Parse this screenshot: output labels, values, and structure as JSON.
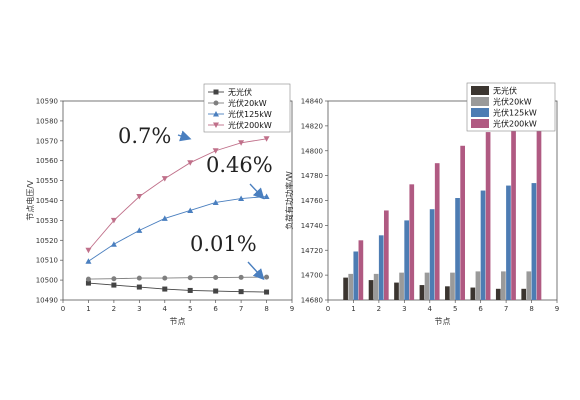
{
  "chart_data": [
    {
      "type": "line",
      "xlabel": "节点",
      "ylabel": "节点电压/V",
      "xlim": [
        0,
        9
      ],
      "ylim": [
        10490,
        10590
      ],
      "xticks": [
        0,
        1,
        2,
        3,
        4,
        5,
        6,
        7,
        8,
        9
      ],
      "yticks": [
        10490,
        10500,
        10510,
        10520,
        10530,
        10540,
        10550,
        10560,
        10570,
        10580,
        10590
      ],
      "grid": false,
      "legend": "top-right",
      "x": [
        1,
        2,
        3,
        4,
        5,
        6,
        7,
        8
      ],
      "series": [
        {
          "name": "无光伏",
          "color": "#444444",
          "marker": "square",
          "values": [
            10498.5,
            10497.5,
            10496.5,
            10495.5,
            10494.8,
            10494.5,
            10494.2,
            10494
          ]
        },
        {
          "name": "光伏20kW",
          "color": "#7f7f7f",
          "marker": "circle",
          "values": [
            10500.5,
            10500.7,
            10501,
            10501,
            10501.2,
            10501.3,
            10501.4,
            10501.5
          ]
        },
        {
          "name": "光伏125kW",
          "color": "#4a7fbf",
          "marker": "triangle-up",
          "values": [
            10509.5,
            10518,
            10525,
            10531,
            10535,
            10539,
            10541,
            10542
          ]
        },
        {
          "name": "光伏200kW",
          "color": "#c0708a",
          "marker": "triangle-down",
          "values": [
            10515,
            10530,
            10542,
            10551,
            10559,
            10565,
            10569,
            10571
          ]
        }
      ],
      "annotations": [
        {
          "text": "0.7%",
          "arrow_to": [
            4.8,
            10571
          ]
        },
        {
          "text": "0.46%",
          "arrow_to": [
            8,
            10542
          ]
        },
        {
          "text": "0.01%",
          "arrow_to": [
            8,
            10501.5
          ]
        }
      ]
    },
    {
      "type": "bar",
      "xlabel": "节点",
      "ylabel": "负荷有功功率/W",
      "xlim": [
        0,
        9
      ],
      "ylim": [
        14680,
        14840
      ],
      "xticks": [
        0,
        1,
        2,
        3,
        4,
        5,
        6,
        7,
        8,
        9
      ],
      "yticks": [
        14680,
        14700,
        14720,
        14740,
        14760,
        14780,
        14800,
        14820,
        14840
      ],
      "grid": false,
      "legend": "top-right",
      "categories": [
        1,
        2,
        3,
        4,
        5,
        6,
        7,
        8
      ],
      "series": [
        {
          "name": "无光伏",
          "color": "#3b3530",
          "values": [
            14698,
            14696,
            14694,
            14692,
            14691,
            14690,
            14689,
            14689
          ]
        },
        {
          "name": "光伏20kW",
          "color": "#9a9a9a",
          "values": [
            14701,
            14701,
            14702,
            14702,
            14702,
            14703,
            14703,
            14703
          ]
        },
        {
          "name": "光伏125kW",
          "color": "#4d7cb3",
          "values": [
            14719,
            14732,
            14744,
            14753,
            14762,
            14768,
            14772,
            14774
          ]
        },
        {
          "name": "光伏200kW",
          "color": "#b05a82",
          "values": [
            14728,
            14752,
            14773,
            14790,
            14804,
            14815,
            14821,
            14825
          ]
        }
      ]
    }
  ]
}
